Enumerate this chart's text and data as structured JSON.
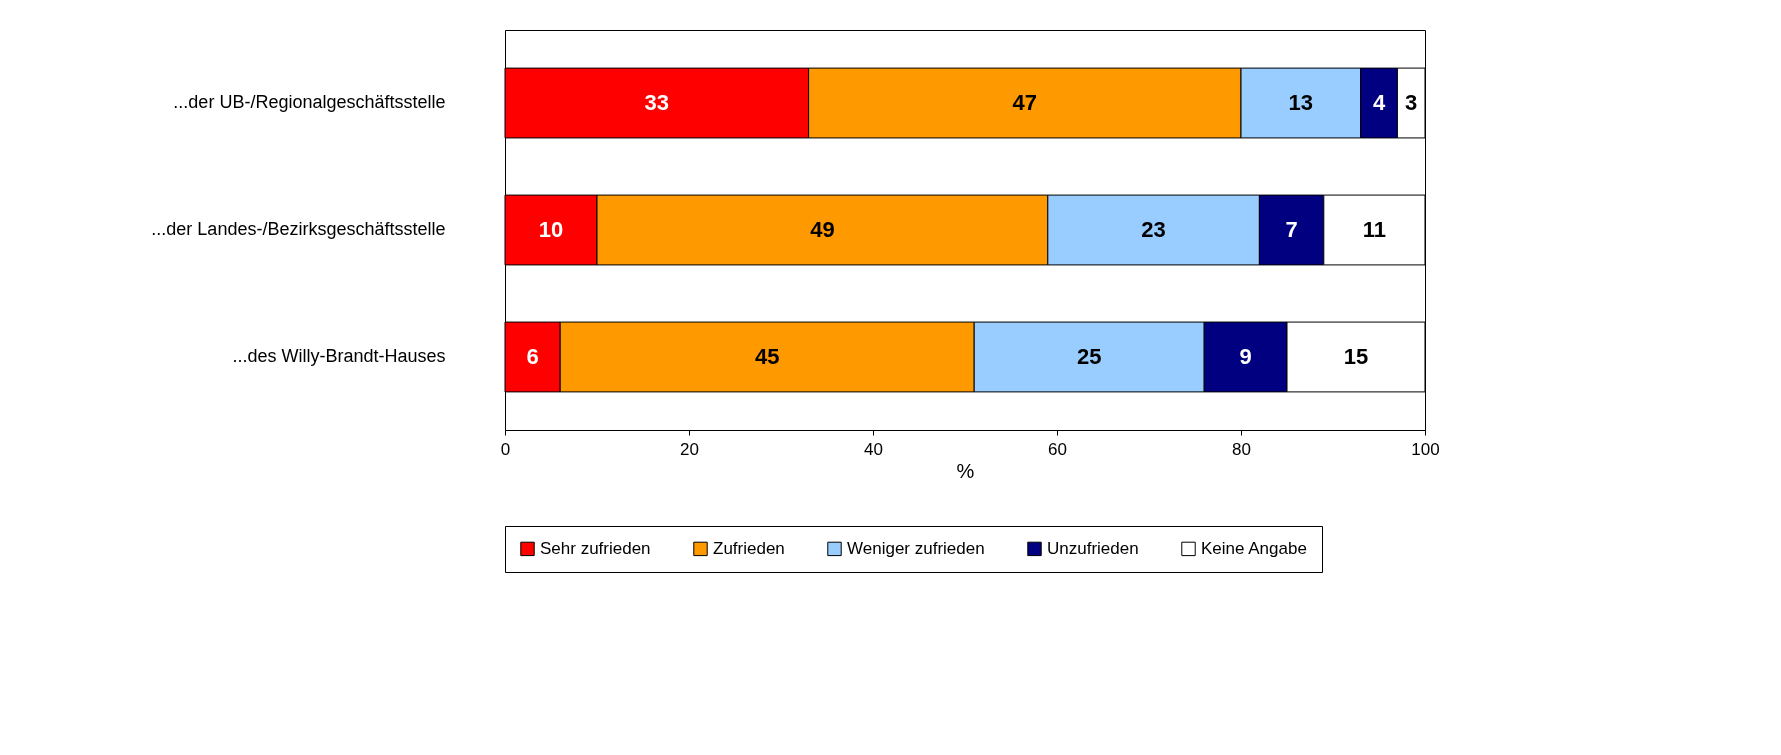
{
  "chart_data": {
    "type": "bar",
    "orientation": "horizontal",
    "stacked": true,
    "data_labels": true,
    "xlabel": "%",
    "xlim": [
      0,
      100
    ],
    "xticks": [
      0,
      20,
      40,
      60,
      80,
      100
    ],
    "grid": false,
    "legend": "bottom",
    "categories": [
      "...der UB-/Regionalgeschäftsstelle",
      "...der Landes-/Bezirksgeschäftsstelle",
      "...des Willy-Brandt-Hauses"
    ],
    "series": [
      {
        "name": "Sehr zufrieden",
        "color": "#ff0000",
        "values": [
          33,
          10,
          6
        ]
      },
      {
        "name": "Zufrieden",
        "color": "#ff9900",
        "values": [
          47,
          49,
          45
        ]
      },
      {
        "name": "Weniger zufrieden",
        "color": "#99ccff",
        "values": [
          13,
          23,
          25
        ]
      },
      {
        "name": "Unzufrieden",
        "color": "#000080",
        "values": [
          4,
          7,
          9
        ]
      },
      {
        "name": "Keine Angabe",
        "color": "#ffffff",
        "values": [
          3,
          11,
          15
        ]
      }
    ]
  }
}
